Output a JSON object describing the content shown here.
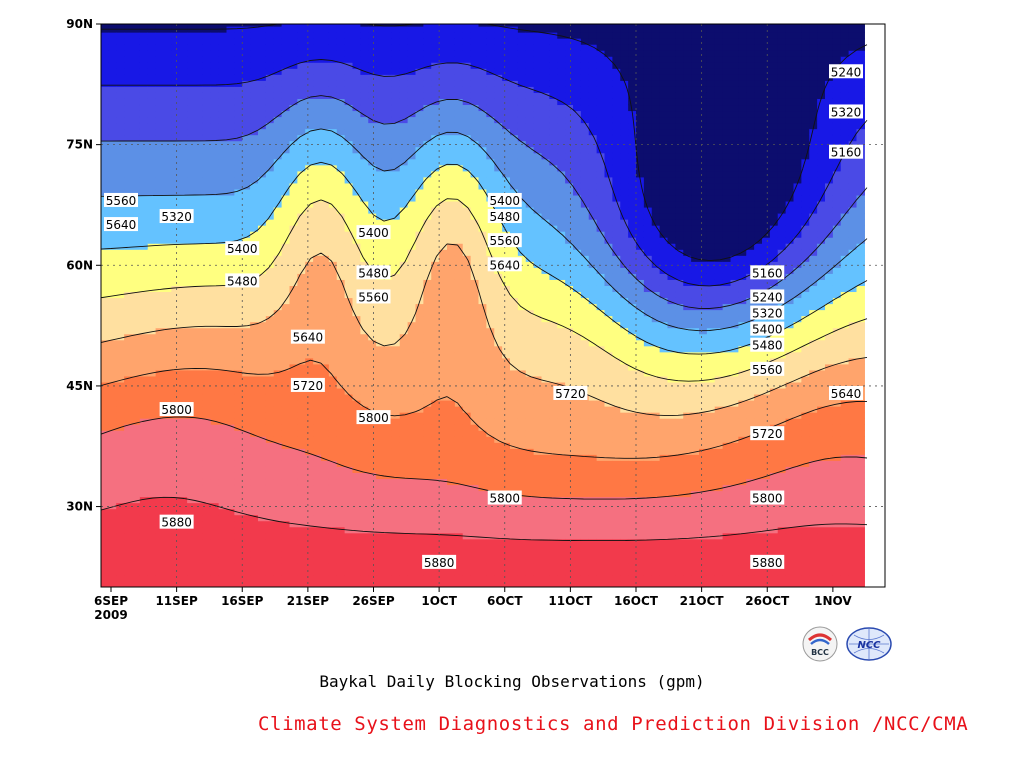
{
  "chart_data": {
    "type": "heatmap",
    "title": "Baykal Daily Blocking Observations (gpm)",
    "credit": "Climate System Diagnostics and Prediction Division /NCC/CMA",
    "x_tick_labels": [
      "6SEP",
      "11SEP",
      "16SEP",
      "21SEP",
      "26SEP",
      "1OCT",
      "6OCT",
      "11OCT",
      "16OCT",
      "21OCT",
      "26OCT",
      "1NOV"
    ],
    "x_sub_label": "2009",
    "y_tick_labels": [
      "30N",
      "45N",
      "60N",
      "75N",
      "90N"
    ],
    "y_values": [
      30,
      45,
      60,
      75,
      90
    ],
    "ylim": [
      20,
      90
    ],
    "x_range": [
      "2009-09-06",
      "2009-11-01"
    ],
    "grid": true,
    "contour_levels": [
      5160,
      5240,
      5320,
      5400,
      5480,
      5560,
      5640,
      5720,
      5800,
      5880
    ],
    "level_colors": [
      "#0c0d6e",
      "#1818e6",
      "#4a4ae6",
      "#5c90e6",
      "#64c2ff",
      "#ffff80",
      "#ffe0a0",
      "#ffa46c",
      "#ff7844",
      "#f57080",
      "#f23a4c"
    ],
    "contour_labels": [
      {
        "date": "2009-11-01",
        "lat": 84,
        "value": "5240"
      },
      {
        "date": "2009-11-01",
        "lat": 74,
        "value": "5160"
      },
      {
        "date": "2009-11-01",
        "lat": 79,
        "value": "5320"
      },
      {
        "date": "2009-09-06",
        "lat": 68,
        "value": "5560"
      },
      {
        "date": "2009-09-11",
        "lat": 66,
        "value": "5320"
      },
      {
        "date": "2009-09-06",
        "lat": 65,
        "value": "5640"
      },
      {
        "date": "2009-09-26",
        "lat": 64,
        "value": "5400"
      },
      {
        "date": "2009-10-06",
        "lat": 68,
        "value": "5400"
      },
      {
        "date": "2009-10-06",
        "lat": 66,
        "value": "5480"
      },
      {
        "date": "2009-10-06",
        "lat": 63,
        "value": "5560"
      },
      {
        "date": "2009-09-16",
        "lat": 62,
        "value": "5400"
      },
      {
        "date": "2009-10-06",
        "lat": 60,
        "value": "5640"
      },
      {
        "date": "2009-09-26",
        "lat": 59,
        "value": "5480"
      },
      {
        "date": "2009-10-26",
        "lat": 59,
        "value": "5160"
      },
      {
        "date": "2009-09-16",
        "lat": 58,
        "value": "5480"
      },
      {
        "date": "2009-10-26",
        "lat": 56,
        "value": "5240"
      },
      {
        "date": "2009-09-26",
        "lat": 56,
        "value": "5560"
      },
      {
        "date": "2009-10-26",
        "lat": 54,
        "value": "5320"
      },
      {
        "date": "2009-10-26",
        "lat": 52,
        "value": "5400"
      },
      {
        "date": "2009-09-21",
        "lat": 51,
        "value": "5640"
      },
      {
        "date": "2009-10-26",
        "lat": 50,
        "value": "5480"
      },
      {
        "date": "2009-10-26",
        "lat": 47,
        "value": "5560"
      },
      {
        "date": "2009-09-21",
        "lat": 45,
        "value": "5720"
      },
      {
        "date": "2009-10-11",
        "lat": 44,
        "value": "5720"
      },
      {
        "date": "2009-11-01",
        "lat": 44,
        "value": "5640"
      },
      {
        "date": "2009-09-11",
        "lat": 42,
        "value": "5800"
      },
      {
        "date": "2009-09-26",
        "lat": 41,
        "value": "5800"
      },
      {
        "date": "2009-10-26",
        "lat": 39,
        "value": "5720"
      },
      {
        "date": "2009-10-06",
        "lat": 31,
        "value": "5800"
      },
      {
        "date": "2009-10-26",
        "lat": 31,
        "value": "5800"
      },
      {
        "date": "2009-09-11",
        "lat": 28,
        "value": "5880"
      },
      {
        "date": "2009-10-01",
        "lat": 23,
        "value": "5880"
      },
      {
        "date": "2009-10-26",
        "lat": 23,
        "value": "5880"
      }
    ]
  },
  "logos": [
    {
      "name": "bcc-logo",
      "text": "BCC"
    },
    {
      "name": "ncc-logo",
      "text": "NCC"
    }
  ]
}
